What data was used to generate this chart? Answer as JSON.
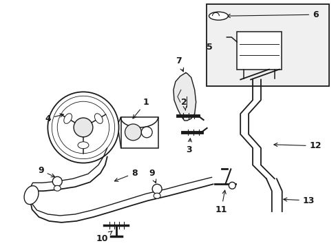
{
  "background_color": "#ffffff",
  "line_color": "#1a1a1a",
  "gray_fill": "#e8e8e8",
  "dot_fill": "#d0d0d0"
}
